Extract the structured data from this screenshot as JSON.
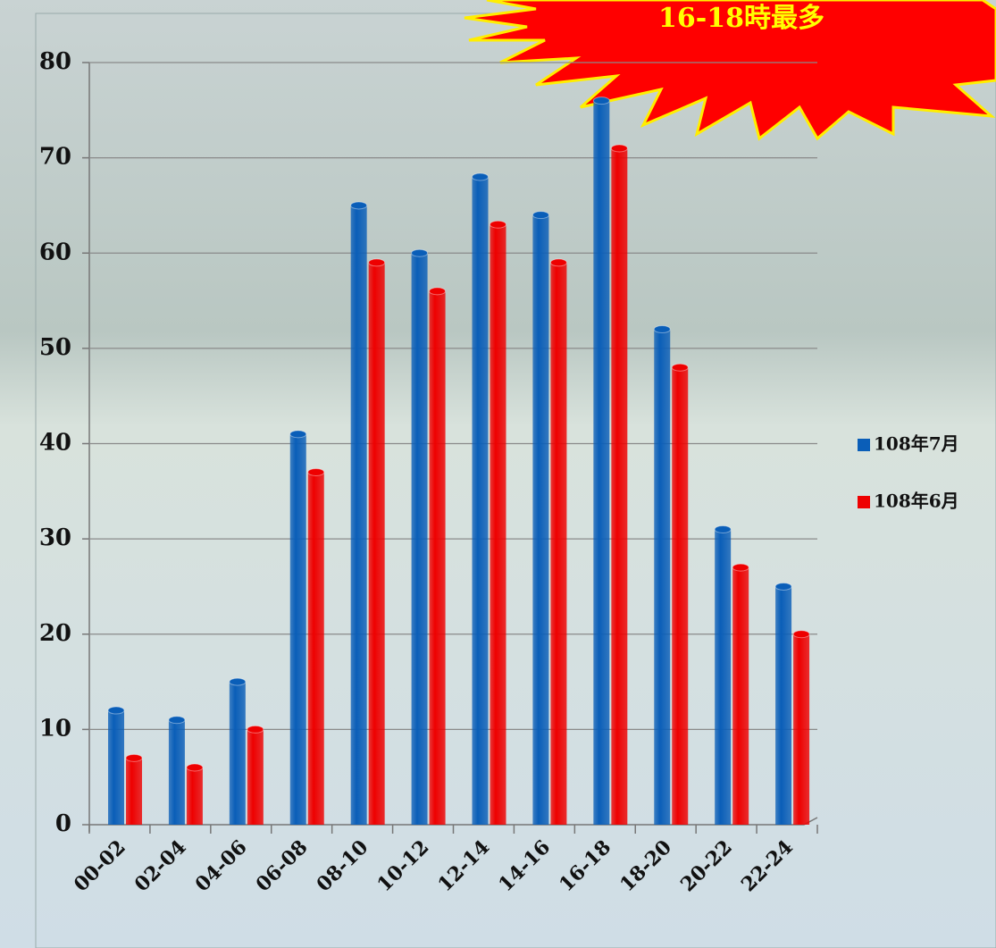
{
  "chart_data": {
    "type": "bar",
    "annotation": "16-18時最多",
    "categories": [
      "00-02",
      "02-04",
      "04-06",
      "06-08",
      "08-10",
      "10-12",
      "12-14",
      "14-16",
      "16-18",
      "18-20",
      "20-22",
      "22-24"
    ],
    "series": [
      {
        "name": "108年7月",
        "color": "#0a5eb8",
        "values": [
          12,
          11,
          15,
          41,
          65,
          60,
          68,
          64,
          76,
          52,
          31,
          25
        ]
      },
      {
        "name": "108年6月",
        "color": "#ee0000",
        "values": [
          7,
          6,
          10,
          37,
          59,
          56,
          63,
          59,
          71,
          48,
          27,
          20
        ]
      }
    ],
    "ylim": [
      0,
      80
    ],
    "yticks": [
      0,
      10,
      20,
      30,
      40,
      50,
      60,
      70,
      80
    ],
    "grid": true,
    "legend": "right"
  }
}
